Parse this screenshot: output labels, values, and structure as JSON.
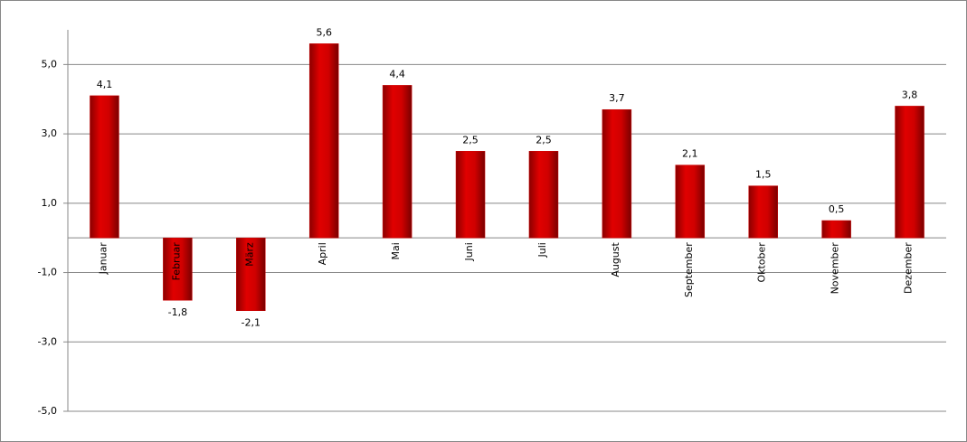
{
  "chart_data": {
    "type": "bar",
    "categories": [
      "Januar",
      "Februar",
      "März",
      "April",
      "Mai",
      "Juni",
      "Juli",
      "August",
      "September",
      "Oktober",
      "November",
      "Dezember"
    ],
    "values": [
      4.1,
      -1.8,
      -2.1,
      5.6,
      4.4,
      2.5,
      2.5,
      3.7,
      2.1,
      1.5,
      0.5,
      3.8
    ],
    "value_labels": [
      "4,1",
      "-1,8",
      "-2,1",
      "5,6",
      "4,4",
      "2,5",
      "2,5",
      "3,7",
      "2,1",
      "1,5",
      "0,5",
      "3,8"
    ],
    "color": "#cc0000",
    "ylim": [
      -5,
      6
    ],
    "yticks": [
      {
        "value": 5,
        "label": "5,0"
      },
      {
        "value": 3,
        "label": "3,0"
      },
      {
        "value": 1,
        "label": "1,0"
      },
      {
        "value": -1,
        "label": "-1,0"
      },
      {
        "value": -3,
        "label": "-3,0"
      },
      {
        "value": -5,
        "label": "-5,0"
      }
    ],
    "grid": true
  }
}
